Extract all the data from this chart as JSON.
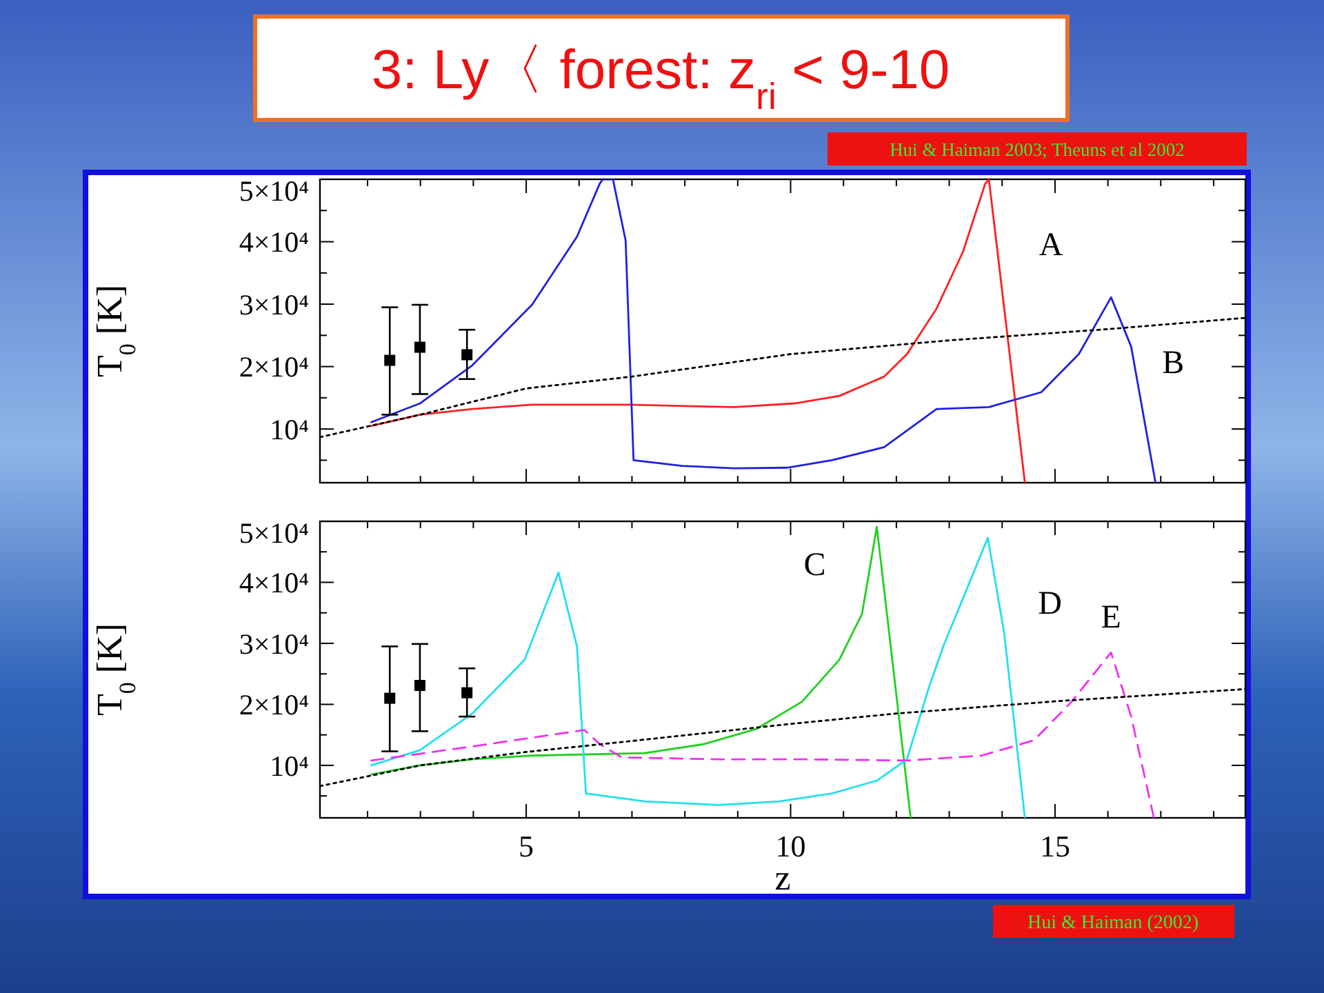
{
  "chart_data": [
    {
      "type": "line",
      "title": "3: Ly〈 forest: z$_{ri}$ < 9-10",
      "ylabel": "T$_{0}$ [K]",
      "annotations": [
        "Hui & Haiman 2003; Theuns et al 2002"
      ],
      "xlim": [
        1.1,
        18.6
      ],
      "ylim": [
        1400,
        50000
      ],
      "xticks": [
        {
          "value": 2,
          "label": null
        },
        {
          "value": 3,
          "label": null
        },
        {
          "value": 4,
          "label": null
        },
        5,
        {
          "value": 6,
          "label": null
        },
        {
          "value": 7,
          "label": null
        },
        {
          "value": 8,
          "label": null
        },
        {
          "value": 9,
          "label": null
        },
        10,
        {
          "value": 11,
          "label": null
        },
        {
          "value": 12,
          "label": null
        },
        {
          "value": 13,
          "label": null
        },
        {
          "value": 14,
          "label": null
        },
        15,
        {
          "value": 16,
          "label": null
        },
        {
          "value": 17,
          "label": null
        },
        {
          "value": 18,
          "label": null
        }
      ],
      "yticks": [
        {
          "value": 5000,
          "label": null
        },
        {
          "value": 10000,
          "label": "10⁴"
        },
        {
          "value": 15000,
          "label": null
        },
        {
          "value": 20000,
          "label": "2×10⁴"
        },
        {
          "value": 25000,
          "label": null
        },
        {
          "value": 30000,
          "label": "3×10⁴"
        },
        {
          "value": 35000,
          "label": null
        },
        {
          "value": 40000,
          "label": "4×10⁴"
        },
        {
          "value": 45000,
          "label": null
        },
        {
          "value": 50000,
          "label": "5×10⁴"
        }
      ],
      "tick_labels": "y",
      "grid": false,
      "series": [
        {
          "name": "A",
          "color": "#ff2020",
          "x": [
            2.07,
            2.99,
            3.98,
            5.11,
            6.95,
            8.94,
            10.07,
            10.92,
            11.77,
            12.2,
            12.76,
            13.26,
            13.68,
            13.75,
            14.43
          ],
          "values": [
            10500,
            12300,
            13200,
            13900,
            13900,
            13500,
            14100,
            15300,
            18400,
            22000,
            29300,
            38400,
            49300,
            50000,
            1400
          ]
        },
        {
          "name": "B",
          "color": "#2020e0",
          "x": [
            2.07,
            2.99,
            3.98,
            5.11,
            5.96,
            6.39,
            6.45,
            6.64,
            6.88,
            7.03,
            7.95,
            8.94,
            9.93,
            10.78,
            11.77,
            12.76,
            13.75,
            14.74,
            15.45,
            16.06,
            16.44,
            16.9
          ],
          "values": [
            11100,
            14100,
            20200,
            29900,
            40800,
            49300,
            50000,
            50000,
            40200,
            5000,
            4100,
            3700,
            3800,
            5000,
            7100,
            13200,
            13500,
            15900,
            22000,
            31100,
            23200,
            1400
          ]
        },
        {
          "color": "#000000",
          "line_style": "dotted",
          "x": [
            1.1,
            3,
            5,
            7,
            10,
            13,
            16,
            18.6
          ],
          "values": [
            8700,
            12300,
            16500,
            18400,
            22000,
            24200,
            26000,
            27800
          ]
        },
        {
          "type": "scatter",
          "marker": "square",
          "color": "#000000",
          "x": [
            2.42,
            2.99,
            3.88
          ],
          "values": [
            21000,
            23100,
            21900
          ],
          "errors": [
            [
              12300,
              29500
            ],
            [
              15600,
              29900
            ],
            [
              18000,
              25900
            ]
          ]
        }
      ]
    },
    {
      "type": "line",
      "xlabel": "z",
      "ylabel": "T$_{0}$ [K]",
      "annotations": [
        "Hui & Haiman (2002)"
      ],
      "xlim": [
        1.1,
        18.6
      ],
      "ylim": [
        1400,
        50000
      ],
      "xticks": [
        {
          "value": 2,
          "label": null
        },
        {
          "value": 3,
          "label": null
        },
        {
          "value": 4,
          "label": null
        },
        5,
        {
          "value": 6,
          "label": null
        },
        {
          "value": 7,
          "label": null
        },
        {
          "value": 8,
          "label": null
        },
        {
          "value": 9,
          "label": null
        },
        10,
        {
          "value": 11,
          "label": null
        },
        {
          "value": 12,
          "label": null
        },
        {
          "value": 13,
          "label": null
        },
        {
          "value": 14,
          "label": null
        },
        15,
        {
          "value": 16,
          "label": null
        },
        {
          "value": 17,
          "label": null
        },
        {
          "value": 18,
          "label": null
        }
      ],
      "yticks": [
        {
          "value": 5000,
          "label": null
        },
        {
          "value": 10000,
          "label": "10⁴"
        },
        {
          "value": 15000,
          "label": null
        },
        {
          "value": 20000,
          "label": "2×10⁴"
        },
        {
          "value": 25000,
          "label": null
        },
        {
          "value": 30000,
          "label": "3×10⁴"
        },
        {
          "value": 35000,
          "label": null
        },
        {
          "value": 40000,
          "label": "4×10⁴"
        },
        {
          "value": 45000,
          "label": null
        },
        {
          "value": 50000,
          "label": "5×10⁴"
        }
      ],
      "grid": false,
      "series": [
        {
          "name": "C",
          "color": "#20d020",
          "x": [
            2.07,
            2.99,
            3.98,
            5.11,
            7.24,
            8.37,
            9.36,
            10.21,
            10.92,
            11.35,
            11.63,
            12.27
          ],
          "values": [
            8500,
            10000,
            11000,
            11600,
            12000,
            13500,
            16000,
            20400,
            27300,
            34800,
            49100,
            1400
          ]
        },
        {
          "name": "D",
          "color": "#20e0f0",
          "x": [
            2.07,
            2.99,
            3.98,
            4.97,
            5.61,
            5.96,
            6.13,
            7.24,
            8.65,
            9.79,
            10.78,
            11.63,
            12.2,
            12.62,
            12.9,
            13.73,
            14.04,
            14.43
          ],
          "values": [
            10000,
            12500,
            18500,
            27300,
            41600,
            29500,
            5400,
            4100,
            3500,
            4100,
            5400,
            7500,
            11000,
            22900,
            29800,
            47300,
            31600,
            1400
          ]
        },
        {
          "name": "E",
          "color": "#f030f0",
          "line_style": "dashed",
          "x": [
            2.07,
            3.98,
            6.1,
            6.39,
            6.81,
            8.65,
            10.21,
            12.2,
            13.61,
            14.6,
            15.31,
            16.06,
            16.44,
            16.87
          ],
          "values": [
            10800,
            13100,
            15800,
            13500,
            11300,
            11000,
            11000,
            10800,
            11600,
            14100,
            20400,
            28500,
            18000,
            1400
          ]
        },
        {
          "color": "#000000",
          "line_style": "dotted",
          "x": [
            1.1,
            3,
            5,
            7,
            10,
            12,
            15,
            18.6
          ],
          "values": [
            6600,
            10000,
            12200,
            14000,
            16800,
            18500,
            20500,
            22500
          ]
        },
        {
          "type": "scatter",
          "marker": "square",
          "color": "#000000",
          "x": [
            2.42,
            2.99,
            3.88
          ],
          "values": [
            21000,
            23100,
            21900
          ],
          "errors": [
            [
              12300,
              29500
            ],
            [
              15600,
              29900
            ],
            [
              18000,
              25900
            ]
          ]
        }
      ]
    }
  ]
}
